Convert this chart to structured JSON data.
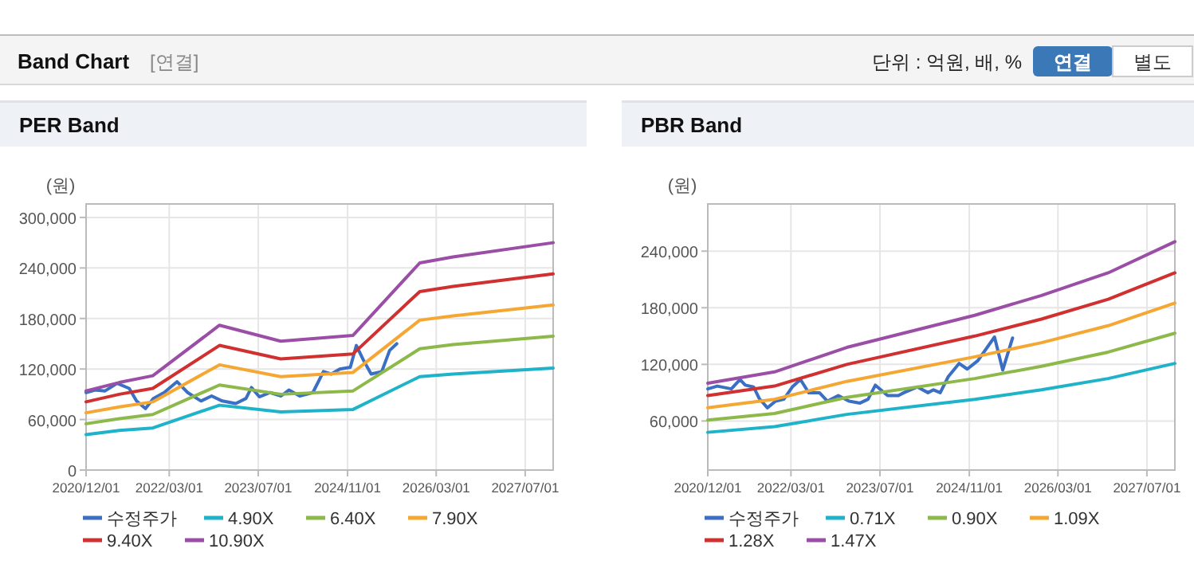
{
  "chart_data": [
    {
      "type": "line",
      "title": "PER Band",
      "ylabel": "(원)",
      "annotations": [
        "Band Chart",
        "[연결]",
        "단위 : 억원, 배, %",
        "연결",
        "별도"
      ],
      "xlim": [
        "2020-12-01",
        "2027-12-01"
      ],
      "xticks": [
        {
          "value": "2020-12-01",
          "label": "2020/12/01"
        },
        {
          "value": "2022-03-01",
          "label": "2022/03/01"
        },
        {
          "value": "2023-07-01",
          "label": "2023/07/01"
        },
        {
          "value": "2024-11-01",
          "label": "2024/11/01"
        },
        {
          "value": "2026-03-01",
          "label": "2026/03/01"
        },
        {
          "value": "2027-07-01",
          "label": "2027/07/01"
        }
      ],
      "ylim": [
        0,
        316000
      ],
      "yticks": [
        {
          "value": 0,
          "label": "0"
        },
        {
          "value": 60000,
          "label": "60,000"
        },
        {
          "value": 120000,
          "label": "120,000"
        },
        {
          "value": 180000,
          "label": "180,000"
        },
        {
          "value": 240000,
          "label": "240,000"
        },
        {
          "value": 300000,
          "label": "300,000"
        }
      ],
      "grid": true,
      "legend": "bottom",
      "marker": "none",
      "line_style": "solid",
      "series": [
        {
          "name": "수정주가",
          "color": "#3a6fc4",
          "x": [
            "2020-12-01",
            "2021-01-19",
            "2021-03-15",
            "2021-05-20",
            "2021-07-25",
            "2021-09-03",
            "2021-10-22",
            "2021-12-04",
            "2022-02-01",
            "2022-04-13",
            "2022-06-10",
            "2022-08-22",
            "2022-10-19",
            "2022-12-16",
            "2023-02-28",
            "2023-04-25",
            "2023-05-25",
            "2023-07-07",
            "2023-09-04",
            "2023-11-03",
            "2023-12-16",
            "2024-02-13",
            "2024-04-25",
            "2024-06-22",
            "2024-08-04",
            "2024-09-19",
            "2024-11-16",
            "2024-12-19",
            "2025-01-28",
            "2025-03-10",
            "2025-05-07",
            "2025-06-19",
            "2025-07-28"
          ],
          "values": [
            92000,
            95000,
            94000,
            103000,
            97000,
            82000,
            73000,
            85000,
            92000,
            105000,
            92000,
            82000,
            88000,
            82000,
            79000,
            85000,
            98000,
            87000,
            92000,
            88000,
            95000,
            88000,
            92000,
            117000,
            114000,
            120000,
            122000,
            148000,
            130000,
            114000,
            117000,
            142000,
            150000
          ]
        },
        {
          "name": "4.90X",
          "color": "#1fb3c9",
          "x": [
            "2020-12-01",
            "2021-06-01",
            "2021-12-01",
            "2022-12-01",
            "2023-11-01",
            "2024-12-01",
            "2025-12-01",
            "2026-06-01",
            "2027-12-01"
          ],
          "values": [
            42000,
            47000,
            50000,
            77000,
            69000,
            72000,
            111000,
            114000,
            121000
          ]
        },
        {
          "name": "6.40X",
          "color": "#8db84a",
          "x": [
            "2020-12-01",
            "2021-06-01",
            "2021-12-01",
            "2022-12-01",
            "2023-11-01",
            "2024-12-01",
            "2025-12-01",
            "2026-06-01",
            "2027-12-01"
          ],
          "values": [
            55000,
            61000,
            66000,
            101000,
            90000,
            94000,
            144000,
            149000,
            159000
          ]
        },
        {
          "name": "7.90X",
          "color": "#f5a733",
          "x": [
            "2020-12-01",
            "2021-06-01",
            "2021-12-01",
            "2022-12-01",
            "2023-11-01",
            "2024-12-01",
            "2025-12-01",
            "2026-06-01",
            "2027-12-01"
          ],
          "values": [
            68000,
            75000,
            81000,
            125000,
            111000,
            116000,
            178000,
            183000,
            196000
          ]
        },
        {
          "name": "9.40X",
          "color": "#d03030",
          "x": [
            "2020-12-01",
            "2021-06-01",
            "2021-12-01",
            "2022-12-01",
            "2023-11-01",
            "2024-12-01",
            "2025-12-01",
            "2026-06-01",
            "2027-12-01"
          ],
          "values": [
            81000,
            90000,
            97000,
            148000,
            132000,
            138000,
            212000,
            218000,
            233000
          ]
        },
        {
          "name": "10.90X",
          "color": "#9b4ea6",
          "x": [
            "2020-12-01",
            "2021-06-01",
            "2021-12-01",
            "2022-12-01",
            "2023-11-01",
            "2024-12-01",
            "2025-12-01",
            "2026-06-01",
            "2027-12-01"
          ],
          "values": [
            94000,
            104000,
            112000,
            172000,
            153000,
            160000,
            246000,
            253000,
            270000
          ]
        }
      ]
    },
    {
      "type": "line",
      "title": "PBR Band",
      "ylabel": "(원)",
      "xlim": [
        "2020-12-01",
        "2027-12-01"
      ],
      "xticks": [
        {
          "value": "2020-12-01",
          "label": "2020/12/01"
        },
        {
          "value": "2022-03-01",
          "label": "2022/03/01"
        },
        {
          "value": "2023-07-01",
          "label": "2023/07/01"
        },
        {
          "value": "2024-11-01",
          "label": "2024/11/01"
        },
        {
          "value": "2026-03-01",
          "label": "2026/03/01"
        },
        {
          "value": "2027-07-01",
          "label": "2027/07/01"
        }
      ],
      "ylim": [
        8000,
        290000
      ],
      "yticks": [
        {
          "value": 60000,
          "label": "60,000"
        },
        {
          "value": 120000,
          "label": "120,000"
        },
        {
          "value": 180000,
          "label": "180,000"
        },
        {
          "value": 240000,
          "label": "240,000"
        }
      ],
      "grid": true,
      "legend": "bottom",
      "marker": "none",
      "line_style": "solid",
      "series": [
        {
          "name": "수정주가",
          "color": "#3a6fc4",
          "x": [
            "2020-12-01",
            "2021-01-22",
            "2021-04-09",
            "2021-05-26",
            "2021-06-24",
            "2021-08-09",
            "2021-09-08",
            "2021-10-23",
            "2021-12-07",
            "2022-01-21",
            "2022-03-08",
            "2022-04-22",
            "2022-06-06",
            "2022-08-04",
            "2022-09-17",
            "2022-11-15",
            "2023-01-13",
            "2023-03-14",
            "2023-04-27",
            "2023-06-06",
            "2023-08-12",
            "2023-10-10",
            "2023-11-09",
            "2024-01-22",
            "2024-03-20",
            "2024-04-19",
            "2024-05-26",
            "2024-07-09",
            "2024-09-06",
            "2024-10-21",
            "2024-12-18",
            "2025-03-19",
            "2025-05-03",
            "2025-06-26"
          ],
          "values": [
            94000,
            97000,
            94000,
            104000,
            98000,
            96000,
            84000,
            74000,
            81000,
            83000,
            96000,
            104000,
            90000,
            90000,
            81000,
            87000,
            81000,
            79000,
            83000,
            98000,
            87000,
            87000,
            90000,
            96000,
            90000,
            93000,
            90000,
            107000,
            121000,
            115000,
            124000,
            149000,
            114000,
            148000
          ]
        },
        {
          "name": "0.71X",
          "color": "#1fb3c9",
          "x": [
            "2020-12-01",
            "2021-12-01",
            "2023-01-01",
            "2024-12-01",
            "2025-12-01",
            "2026-12-01",
            "2027-12-01"
          ],
          "values": [
            48000,
            54000,
            67000,
            83000,
            93000,
            105000,
            121000
          ]
        },
        {
          "name": "0.90X",
          "color": "#8db84a",
          "x": [
            "2020-12-01",
            "2021-12-01",
            "2023-01-01",
            "2024-12-01",
            "2025-12-01",
            "2026-12-01",
            "2027-12-01"
          ],
          "values": [
            61000,
            68000,
            85000,
            105000,
            118000,
            133000,
            153000
          ]
        },
        {
          "name": "1.09X",
          "color": "#f5a733",
          "x": [
            "2020-12-01",
            "2021-12-01",
            "2023-01-01",
            "2024-12-01",
            "2025-12-01",
            "2026-12-01",
            "2027-12-01"
          ],
          "values": [
            74000,
            83000,
            102000,
            128000,
            143000,
            161000,
            185000
          ]
        },
        {
          "name": "1.28X",
          "color": "#d03030",
          "x": [
            "2020-12-01",
            "2021-12-01",
            "2023-01-01",
            "2024-12-01",
            "2025-12-01",
            "2026-12-01",
            "2027-12-01"
          ],
          "values": [
            87000,
            97000,
            120000,
            150000,
            168000,
            189000,
            217000
          ]
        },
        {
          "name": "1.47X",
          "color": "#9b4ea6",
          "x": [
            "2020-12-01",
            "2021-12-01",
            "2023-01-01",
            "2024-12-01",
            "2025-12-01",
            "2026-12-01",
            "2027-12-01"
          ],
          "values": [
            100000,
            112000,
            138000,
            172000,
            193000,
            217000,
            250000
          ]
        }
      ]
    }
  ]
}
